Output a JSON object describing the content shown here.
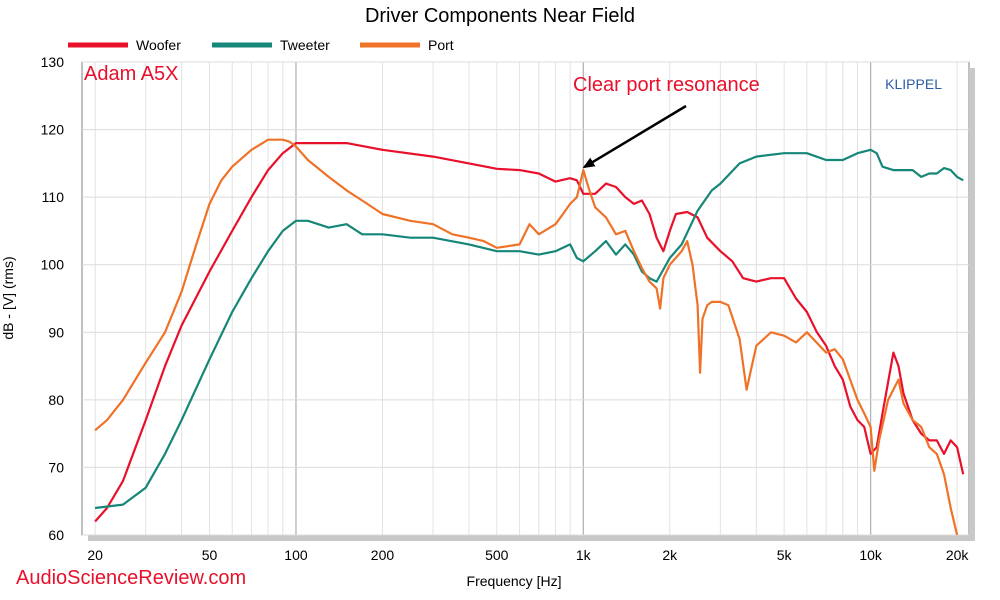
{
  "chart_data": {
    "type": "line",
    "title": "Driver Components Near Field",
    "xlabel": "Frequency [Hz]",
    "ylabel": "dB - [V] (rms)",
    "xscale": "log",
    "xlim": [
      18,
      22000
    ],
    "ylim": [
      60,
      130
    ],
    "xticks": [
      {
        "v": 20,
        "label": "20"
      },
      {
        "v": 50,
        "label": "50"
      },
      {
        "v": 100,
        "label": "100"
      },
      {
        "v": 200,
        "label": "200"
      },
      {
        "v": 500,
        "label": "500"
      },
      {
        "v": 1000,
        "label": "1k"
      },
      {
        "v": 2000,
        "label": "2k"
      },
      {
        "v": 5000,
        "label": "5k"
      },
      {
        "v": 10000,
        "label": "10k"
      },
      {
        "v": 20000,
        "label": "20k"
      }
    ],
    "yticks": [
      60,
      70,
      80,
      90,
      100,
      110,
      120,
      130
    ],
    "grid": true,
    "legend_position": "top-left",
    "series": [
      {
        "name": "Woofer",
        "color": "#e8102a",
        "points": [
          [
            20,
            62
          ],
          [
            22,
            64
          ],
          [
            25,
            68
          ],
          [
            30,
            77
          ],
          [
            35,
            85
          ],
          [
            40,
            91
          ],
          [
            50,
            99
          ],
          [
            60,
            105
          ],
          [
            70,
            110
          ],
          [
            80,
            114
          ],
          [
            90,
            116.5
          ],
          [
            100,
            118
          ],
          [
            120,
            118
          ],
          [
            150,
            118
          ],
          [
            200,
            117
          ],
          [
            300,
            116
          ],
          [
            400,
            115
          ],
          [
            500,
            114.2
          ],
          [
            600,
            114
          ],
          [
            700,
            113.5
          ],
          [
            800,
            112.3
          ],
          [
            900,
            112.8
          ],
          [
            950,
            112.5
          ],
          [
            1000,
            110.5
          ],
          [
            1100,
            110.5
          ],
          [
            1200,
            112
          ],
          [
            1300,
            111.5
          ],
          [
            1400,
            110
          ],
          [
            1500,
            109
          ],
          [
            1600,
            109.5
          ],
          [
            1700,
            107.5
          ],
          [
            1800,
            104
          ],
          [
            1900,
            102
          ],
          [
            2000,
            105
          ],
          [
            2100,
            107.5
          ],
          [
            2300,
            107.8
          ],
          [
            2500,
            107
          ],
          [
            2700,
            104
          ],
          [
            3000,
            102
          ],
          [
            3300,
            100.5
          ],
          [
            3600,
            98
          ],
          [
            4000,
            97.5
          ],
          [
            4500,
            98
          ],
          [
            5000,
            98
          ],
          [
            5500,
            95
          ],
          [
            6000,
            93
          ],
          [
            6500,
            90
          ],
          [
            7000,
            88
          ],
          [
            7500,
            85
          ],
          [
            8000,
            83
          ],
          [
            8500,
            79
          ],
          [
            9000,
            77
          ],
          [
            9500,
            76
          ],
          [
            10000,
            72
          ],
          [
            10500,
            73
          ],
          [
            11000,
            78
          ],
          [
            12000,
            87
          ],
          [
            12500,
            85
          ],
          [
            13000,
            81
          ],
          [
            14000,
            77
          ],
          [
            15000,
            75
          ],
          [
            16000,
            74
          ],
          [
            17000,
            74
          ],
          [
            18000,
            72
          ],
          [
            19000,
            74
          ],
          [
            20000,
            73
          ],
          [
            21000,
            69
          ]
        ]
      },
      {
        "name": "Tweeter",
        "color": "#158678",
        "points": [
          [
            20,
            64
          ],
          [
            25,
            64.5
          ],
          [
            30,
            67
          ],
          [
            35,
            72
          ],
          [
            40,
            77
          ],
          [
            50,
            86
          ],
          [
            60,
            93
          ],
          [
            70,
            98
          ],
          [
            80,
            102
          ],
          [
            90,
            105
          ],
          [
            100,
            106.5
          ],
          [
            110,
            106.5
          ],
          [
            130,
            105.5
          ],
          [
            150,
            106
          ],
          [
            170,
            104.5
          ],
          [
            200,
            104.5
          ],
          [
            250,
            104
          ],
          [
            300,
            104
          ],
          [
            400,
            103
          ],
          [
            500,
            102
          ],
          [
            600,
            102
          ],
          [
            700,
            101.5
          ],
          [
            800,
            102
          ],
          [
            900,
            103
          ],
          [
            950,
            101
          ],
          [
            1000,
            100.5
          ],
          [
            1100,
            102
          ],
          [
            1200,
            103.5
          ],
          [
            1300,
            101.5
          ],
          [
            1400,
            103
          ],
          [
            1500,
            101.5
          ],
          [
            1600,
            99
          ],
          [
            1700,
            98
          ],
          [
            1800,
            97.5
          ],
          [
            2000,
            101
          ],
          [
            2200,
            103
          ],
          [
            2500,
            108
          ],
          [
            2800,
            111
          ],
          [
            3000,
            112
          ],
          [
            3500,
            115
          ],
          [
            4000,
            116
          ],
          [
            5000,
            116.5
          ],
          [
            6000,
            116.5
          ],
          [
            7000,
            115.5
          ],
          [
            8000,
            115.5
          ],
          [
            9000,
            116.5
          ],
          [
            10000,
            117
          ],
          [
            10500,
            116.5
          ],
          [
            11000,
            114.5
          ],
          [
            12000,
            114
          ],
          [
            13000,
            114
          ],
          [
            14000,
            114
          ],
          [
            15000,
            113
          ],
          [
            16000,
            113.5
          ],
          [
            17000,
            113.5
          ],
          [
            18000,
            114.3
          ],
          [
            19000,
            114
          ],
          [
            20000,
            113
          ],
          [
            21000,
            112.5
          ]
        ]
      },
      {
        "name": "Port",
        "color": "#f07228",
        "points": [
          [
            20,
            75.5
          ],
          [
            22,
            77
          ],
          [
            25,
            80
          ],
          [
            30,
            85.5
          ],
          [
            35,
            90
          ],
          [
            40,
            96
          ],
          [
            45,
            103
          ],
          [
            50,
            109
          ],
          [
            55,
            112.5
          ],
          [
            60,
            114.5
          ],
          [
            70,
            117
          ],
          [
            80,
            118.5
          ],
          [
            90,
            118.5
          ],
          [
            95,
            118.2
          ],
          [
            100,
            117.5
          ],
          [
            110,
            115.5
          ],
          [
            130,
            113
          ],
          [
            150,
            111
          ],
          [
            170,
            109.5
          ],
          [
            200,
            107.5
          ],
          [
            250,
            106.5
          ],
          [
            300,
            106
          ],
          [
            350,
            104.5
          ],
          [
            400,
            104
          ],
          [
            450,
            103.5
          ],
          [
            500,
            102.5
          ],
          [
            600,
            103
          ],
          [
            650,
            106
          ],
          [
            700,
            104.5
          ],
          [
            800,
            106
          ],
          [
            850,
            107.5
          ],
          [
            900,
            109
          ],
          [
            950,
            110
          ],
          [
            1000,
            114
          ],
          [
            1050,
            111
          ],
          [
            1100,
            108.5
          ],
          [
            1200,
            107
          ],
          [
            1300,
            104.5
          ],
          [
            1400,
            105
          ],
          [
            1500,
            102
          ],
          [
            1600,
            99.5
          ],
          [
            1700,
            97.5
          ],
          [
            1800,
            96.5
          ],
          [
            1850,
            93.5
          ],
          [
            1900,
            98
          ],
          [
            2000,
            100
          ],
          [
            2200,
            102
          ],
          [
            2300,
            103.5
          ],
          [
            2400,
            100
          ],
          [
            2500,
            94
          ],
          [
            2550,
            84
          ],
          [
            2600,
            92
          ],
          [
            2700,
            94
          ],
          [
            2800,
            94.5
          ],
          [
            3000,
            94.5
          ],
          [
            3200,
            94
          ],
          [
            3500,
            89
          ],
          [
            3700,
            81.5
          ],
          [
            4000,
            88
          ],
          [
            4500,
            90
          ],
          [
            5000,
            89.5
          ],
          [
            5500,
            88.5
          ],
          [
            6000,
            90
          ],
          [
            7000,
            87
          ],
          [
            7500,
            87.5
          ],
          [
            8000,
            86
          ],
          [
            9000,
            80
          ],
          [
            9500,
            78
          ],
          [
            10000,
            76
          ],
          [
            10300,
            69.5
          ],
          [
            10700,
            74
          ],
          [
            11500,
            80
          ],
          [
            12500,
            83
          ],
          [
            13000,
            79.5
          ],
          [
            14000,
            77
          ],
          [
            15000,
            76
          ],
          [
            16000,
            73
          ],
          [
            17000,
            72
          ],
          [
            18000,
            69
          ],
          [
            19000,
            64
          ],
          [
            20000,
            60
          ]
        ]
      }
    ],
    "annotations": {
      "model_label": "Adam A5X",
      "callout": "Clear port resonance",
      "callout_target": [
        1000,
        114
      ],
      "brand": "KLIPPEL",
      "watermark": "AudioScienceReview.com"
    }
  }
}
